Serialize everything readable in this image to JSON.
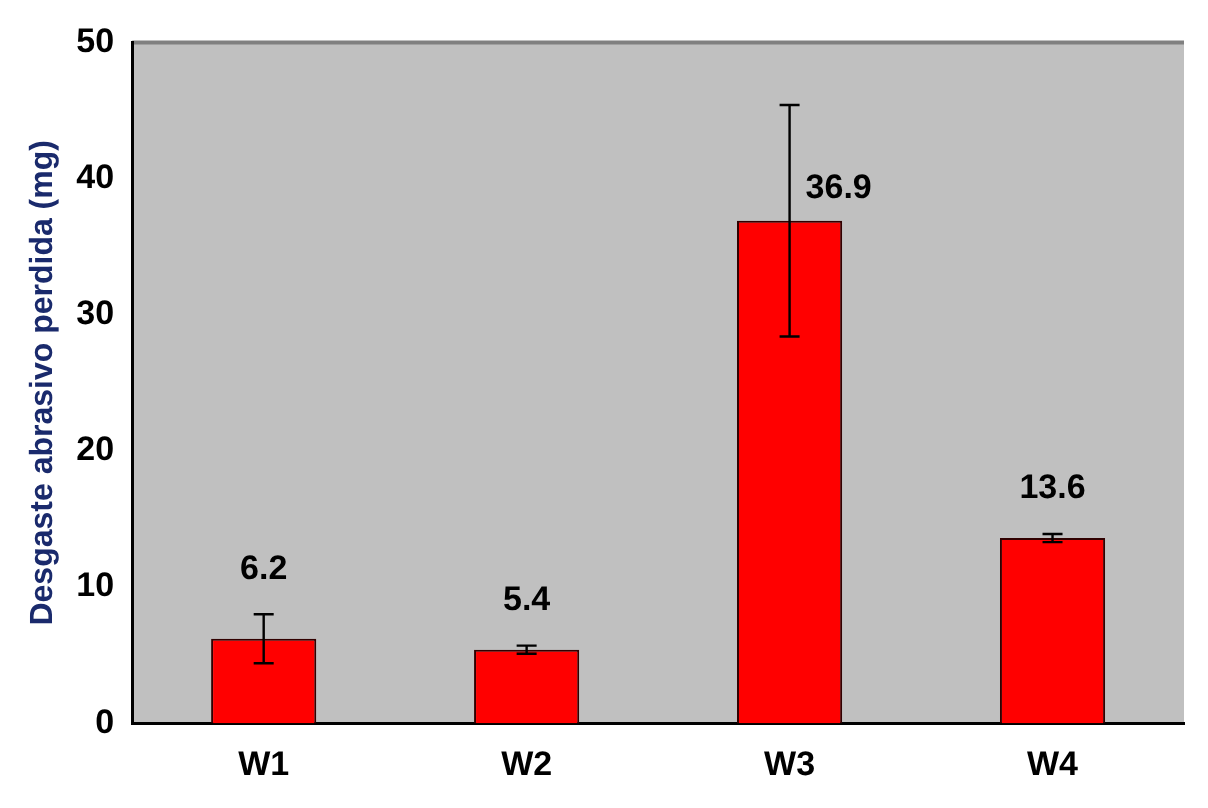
{
  "chart_data": {
    "type": "bar",
    "ylabel": "Desgaste abrasivo perdida (mg)",
    "categories": [
      "W1",
      "W2",
      "W3",
      "W4"
    ],
    "values": [
      6.2,
      5.4,
      36.9,
      13.6
    ],
    "errors": [
      1.8,
      0.3,
      8.5,
      0.3
    ],
    "color": "#ff0000",
    "ylim": [
      0,
      50
    ],
    "yticks": [
      0,
      10,
      20,
      30,
      40,
      50
    ],
    "grid": false,
    "legend": false,
    "data_labels": true
  }
}
